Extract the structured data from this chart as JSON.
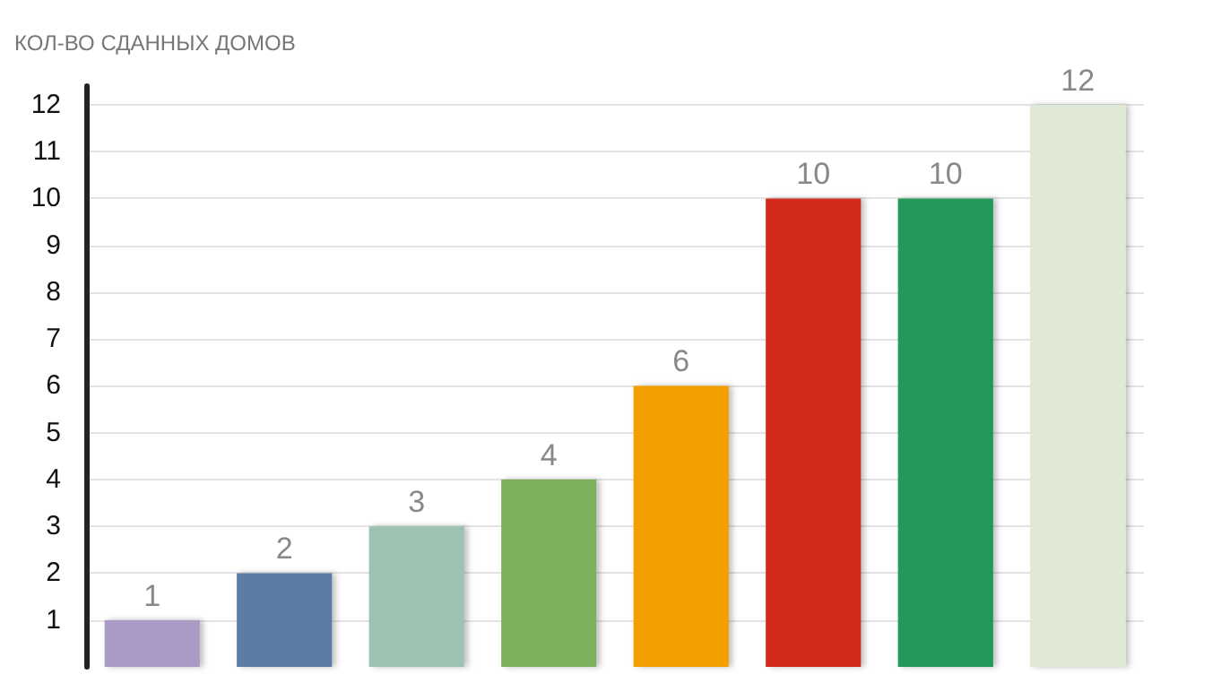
{
  "chart_data": {
    "type": "bar",
    "ylabel": "КОЛ-ВО СДАННЫХ ДОМОВ",
    "categories": [
      null,
      null,
      null,
      null,
      null,
      null,
      null,
      null
    ],
    "values": [
      1,
      2,
      3,
      4,
      6,
      10,
      10,
      12
    ],
    "colors": [
      "#a99bc6",
      "#5b7ba6",
      "#9dc2b1",
      "#7bb05a",
      "#f49e00",
      "#d32b1e",
      "#21995a",
      "#dfe9d6"
    ],
    "ylim": [
      0,
      12.4
    ],
    "yticks": [
      1,
      2,
      3,
      4,
      5,
      6,
      7,
      8,
      9,
      10,
      11,
      12
    ],
    "grid": "y",
    "data_labels": true
  }
}
